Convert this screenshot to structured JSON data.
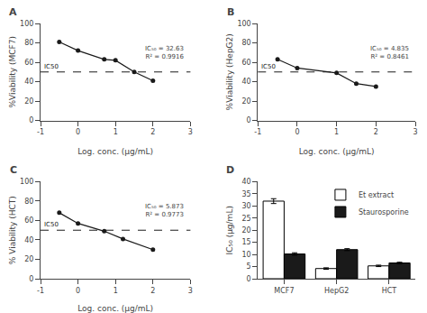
{
  "chart_data": [
    {
      "type": "line",
      "title": "A",
      "x_label": "Log. conc. (μg/mL)",
      "y_label": "%Viability (MCF7)",
      "x": [
        -0.5,
        0,
        0.7,
        1.0,
        1.5,
        2.0
      ],
      "values": [
        81,
        72,
        63,
        62,
        50,
        41
      ],
      "color": "#1a1a1a",
      "marker": "circle",
      "line_style": "solid",
      "hline": {
        "y": 50,
        "label": "IC50",
        "line_style": "dashed",
        "color": "#1a1a1a"
      },
      "annotations": [
        "IC₅₀ = 32.63",
        "R² = 0.9916"
      ],
      "xlim": [
        -1,
        3
      ],
      "ylim": [
        0,
        100
      ],
      "xticks": [
        -1,
        0,
        1,
        2,
        3
      ],
      "yticks": [
        0,
        20,
        40,
        60,
        80,
        100
      ],
      "grid": false
    },
    {
      "type": "line",
      "title": "B",
      "x_label": "Log. conc. (μg/mL)",
      "y_label": "%Viability (HepG2)",
      "x": [
        -0.5,
        0,
        1.0,
        1.5,
        2.0
      ],
      "values": [
        63,
        54,
        49,
        38,
        35
      ],
      "color": "#1a1a1a",
      "marker": "circle",
      "line_style": "solid",
      "hline": {
        "y": 50,
        "label": "IC50",
        "line_style": "dashed",
        "color": "#1a1a1a"
      },
      "annotations": [
        "IC₅₀ = 4.835",
        "R² = 0.8461"
      ],
      "xlim": [
        -1,
        3
      ],
      "ylim": [
        0,
        100
      ],
      "xticks": [
        -1,
        0,
        1,
        2,
        3
      ],
      "yticks": [
        0,
        20,
        40,
        60,
        80,
        100
      ],
      "grid": false
    },
    {
      "type": "line",
      "title": "C",
      "x_label": "Log. conc. (μg/mL)",
      "y_label": "% Viability (HCT)",
      "x": [
        -0.5,
        0,
        0.7,
        1.2,
        2.0
      ],
      "values": [
        68,
        57,
        49,
        41,
        30
      ],
      "color": "#1a1a1a",
      "marker": "circle",
      "line_style": "solid",
      "hline": {
        "y": 50,
        "label": "IC50",
        "line_style": "dashed",
        "color": "#1a1a1a"
      },
      "annotations": [
        "IC₅₀ = 5.873",
        "R² = 0.9773"
      ],
      "xlim": [
        -1,
        3
      ],
      "ylim": [
        0,
        100
      ],
      "xticks": [
        -1,
        0,
        1,
        2,
        3
      ],
      "yticks": [
        0,
        20,
        40,
        60,
        80,
        100
      ],
      "grid": false
    },
    {
      "type": "bar",
      "title": "D",
      "y_label": "IC₅₀ (μg/mL)",
      "categories": [
        "MCF7",
        "HepG2",
        "HCT"
      ],
      "series": [
        {
          "name": "Et extract",
          "color": "#ffffff",
          "values": [
            32.0,
            4.2,
            5.3
          ],
          "errors": [
            1.0,
            0.3,
            0.3
          ]
        },
        {
          "name": "Staurosporine",
          "color": "#1a1a1a",
          "values": [
            10.2,
            12.0,
            6.5
          ],
          "errors": [
            0.5,
            0.4,
            0.3
          ]
        }
      ],
      "ylim": [
        0,
        40
      ],
      "yticks": [
        0,
        5,
        10,
        15,
        20,
        25,
        30,
        35,
        40
      ],
      "legend": "top right",
      "grid": false
    }
  ]
}
